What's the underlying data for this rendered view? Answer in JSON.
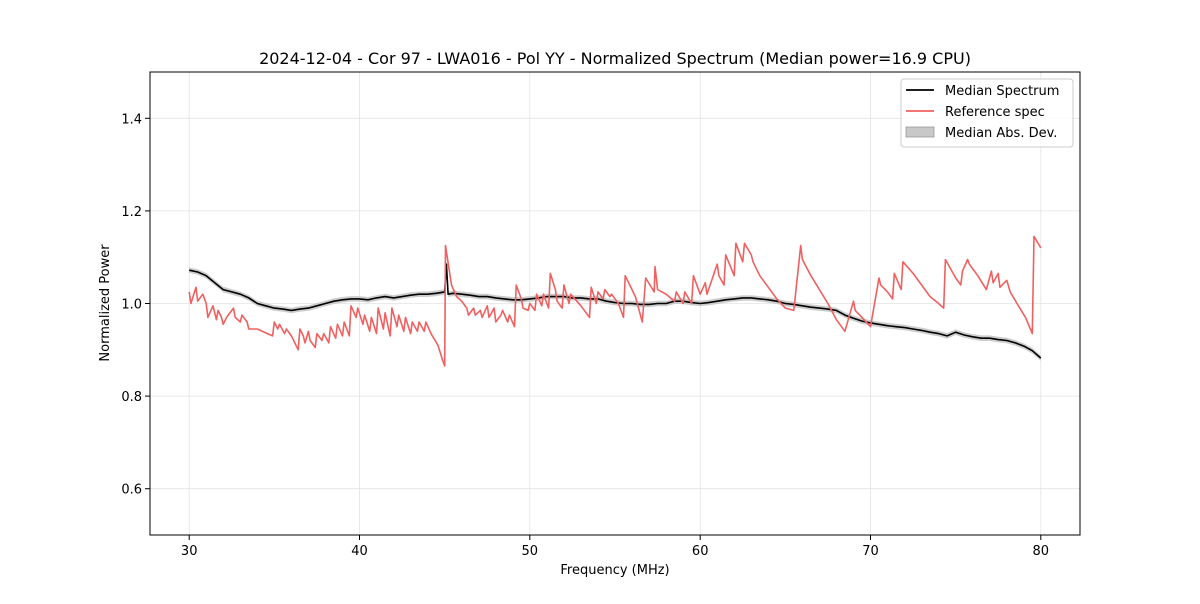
{
  "chart_data": {
    "type": "line",
    "title": "2024-12-04 - Cor 97 - LWA016 - Pol YY - Normalized Spectrum (Median power=16.9 CPU)",
    "xlabel": "Frequency (MHz)",
    "ylabel": "Normalized Power",
    "xlim": [
      27.7,
      82.3
    ],
    "ylim": [
      0.5,
      1.5
    ],
    "xticks": [
      30,
      40,
      50,
      60,
      70,
      80
    ],
    "yticks": [
      0.6,
      0.8,
      1.0,
      1.2,
      1.4
    ],
    "xtick_labels": [
      "30",
      "40",
      "50",
      "60",
      "70",
      "80"
    ],
    "ytick_labels": [
      "0.6",
      "0.8",
      "1.0",
      "1.2",
      "1.4"
    ],
    "grid": true,
    "legend_position": "top-right",
    "legend": [
      {
        "label": "Median Spectrum",
        "kind": "line",
        "color": "#000000"
      },
      {
        "label": "Reference spec",
        "kind": "line",
        "color": "#f06060"
      },
      {
        "label": "Median Abs. Dev.",
        "kind": "patch",
        "color": "#c8c8c8"
      }
    ],
    "series": [
      {
        "name": "Median Spectrum",
        "color": "#000000",
        "mad_band": 0.006,
        "x": [
          30.0,
          30.5,
          31.0,
          31.5,
          32.0,
          32.5,
          33.0,
          33.5,
          34.0,
          34.5,
          35.0,
          35.5,
          36.0,
          36.5,
          37.0,
          37.5,
          38.0,
          38.5,
          39.0,
          39.5,
          40.0,
          40.5,
          41.0,
          41.5,
          42.0,
          42.5,
          43.0,
          43.5,
          44.0,
          44.5,
          45.0,
          45.1,
          45.2,
          45.5,
          46.0,
          46.5,
          47.0,
          47.5,
          48.0,
          48.5,
          49.0,
          49.5,
          50.0,
          50.5,
          51.0,
          51.5,
          52.0,
          52.5,
          53.0,
          53.5,
          54.0,
          54.5,
          55.0,
          55.5,
          56.0,
          56.5,
          57.0,
          57.5,
          58.0,
          58.5,
          59.0,
          59.5,
          60.0,
          60.5,
          61.0,
          61.5,
          62.0,
          62.5,
          63.0,
          63.5,
          64.0,
          64.5,
          65.0,
          65.5,
          66.0,
          66.5,
          67.0,
          67.5,
          68.0,
          68.5,
          69.0,
          69.5,
          70.0,
          70.5,
          71.0,
          71.5,
          72.0,
          72.5,
          73.0,
          73.5,
          74.0,
          74.5,
          75.0,
          75.5,
          76.0,
          76.5,
          77.0,
          77.5,
          78.0,
          78.5,
          79.0,
          79.5,
          80.0
        ],
        "y": [
          1.072,
          1.068,
          1.06,
          1.045,
          1.03,
          1.025,
          1.02,
          1.012,
          1.0,
          0.995,
          0.99,
          0.988,
          0.985,
          0.988,
          0.99,
          0.995,
          1.0,
          1.005,
          1.008,
          1.01,
          1.01,
          1.008,
          1.012,
          1.015,
          1.012,
          1.015,
          1.018,
          1.02,
          1.02,
          1.022,
          1.025,
          1.085,
          1.02,
          1.022,
          1.02,
          1.018,
          1.015,
          1.015,
          1.012,
          1.01,
          1.008,
          1.008,
          1.01,
          1.012,
          1.015,
          1.015,
          1.015,
          1.012,
          1.012,
          1.01,
          1.01,
          1.005,
          1.002,
          1.0,
          1.0,
          0.998,
          0.998,
          1.0,
          1.0,
          1.005,
          1.005,
          1.002,
          1.0,
          1.002,
          1.005,
          1.008,
          1.01,
          1.012,
          1.012,
          1.01,
          1.008,
          1.005,
          1.0,
          0.998,
          0.995,
          0.992,
          0.99,
          0.988,
          0.985,
          0.975,
          0.968,
          0.962,
          0.958,
          0.955,
          0.952,
          0.95,
          0.948,
          0.945,
          0.942,
          0.938,
          0.935,
          0.93,
          0.938,
          0.932,
          0.928,
          0.925,
          0.925,
          0.922,
          0.92,
          0.915,
          0.908,
          0.898,
          0.882
        ]
      },
      {
        "name": "Reference spec",
        "color": "#f06060",
        "x": [
          30.0,
          30.1,
          30.4,
          30.5,
          30.8,
          31.0,
          31.1,
          31.4,
          31.6,
          31.7,
          31.9,
          32.0,
          32.2,
          32.6,
          32.7,
          33.0,
          33.1,
          33.4,
          33.5,
          34.0,
          34.6,
          34.9,
          35.0,
          35.2,
          35.3,
          35.6,
          35.7,
          36.0,
          36.4,
          36.5,
          36.7,
          36.8,
          37.0,
          37.1,
          37.4,
          37.5,
          37.8,
          37.9,
          38.2,
          38.3,
          38.6,
          38.7,
          39.0,
          39.1,
          39.4,
          39.5,
          39.8,
          39.9,
          40.2,
          40.3,
          40.6,
          40.7,
          41.0,
          41.1,
          41.4,
          41.5,
          41.8,
          41.9,
          42.2,
          42.3,
          42.6,
          42.7,
          43.0,
          43.1,
          43.4,
          43.5,
          43.8,
          43.9,
          44.2,
          44.6,
          44.9,
          45.0,
          45.05,
          45.4,
          45.7,
          46.0,
          46.3,
          46.4,
          46.7,
          46.8,
          47.1,
          47.2,
          47.5,
          47.6,
          47.9,
          48.0,
          48.3,
          48.4,
          48.7,
          48.8,
          49.1,
          49.2,
          49.5,
          49.6,
          49.9,
          50.0,
          50.3,
          50.4,
          50.7,
          50.8,
          51.1,
          51.2,
          51.5,
          51.6,
          51.9,
          52.0,
          52.3,
          52.4,
          53.0,
          53.5,
          53.6,
          53.9,
          54.0,
          54.3,
          54.4,
          54.7,
          54.8,
          55.1,
          55.2,
          55.5,
          55.6,
          56.2,
          56.6,
          56.8,
          57.3,
          57.35,
          57.5,
          58.0,
          58.5,
          58.6,
          59.0,
          59.1,
          59.5,
          59.6,
          60.0,
          60.3,
          60.4,
          61.0,
          61.1,
          61.4,
          61.5,
          62.0,
          62.1,
          62.5,
          62.6,
          63.0,
          63.1,
          63.5,
          64.0,
          64.5,
          65.0,
          65.5,
          65.9,
          66.0,
          66.5,
          67.0,
          67.5,
          68.0,
          68.5,
          69.0,
          69.1,
          69.5,
          70.0,
          70.5,
          70.6,
          71.0,
          71.3,
          71.4,
          71.8,
          71.9,
          72.5,
          73.0,
          73.5,
          74.0,
          74.3,
          74.4,
          75.0,
          75.3,
          75.4,
          75.7,
          75.8,
          76.3,
          76.8,
          77.1,
          77.2,
          77.5,
          77.6,
          78.0,
          78.2,
          78.6,
          79.1,
          79.5,
          79.6,
          80.0
        ],
        "y": [
          1.025,
          1.0,
          1.035,
          1.005,
          1.02,
          1.0,
          0.97,
          0.995,
          0.965,
          0.985,
          0.97,
          0.955,
          0.97,
          0.99,
          0.97,
          0.96,
          0.975,
          0.96,
          0.945,
          0.945,
          0.935,
          0.93,
          0.96,
          0.945,
          0.955,
          0.935,
          0.945,
          0.93,
          0.9,
          0.945,
          0.93,
          0.915,
          0.94,
          0.92,
          0.905,
          0.935,
          0.92,
          0.935,
          0.915,
          0.95,
          0.925,
          0.955,
          0.93,
          0.96,
          0.93,
          0.995,
          0.97,
          0.99,
          0.955,
          0.975,
          0.94,
          0.97,
          0.935,
          0.99,
          0.945,
          0.98,
          0.93,
          0.99,
          0.95,
          0.975,
          0.94,
          0.97,
          0.935,
          0.96,
          0.94,
          0.96,
          0.94,
          0.96,
          0.935,
          0.91,
          0.875,
          0.865,
          1.125,
          1.04,
          1.015,
          1.005,
          0.99,
          0.975,
          0.99,
          0.975,
          0.985,
          0.97,
          0.995,
          0.97,
          0.99,
          0.96,
          0.975,
          0.985,
          0.96,
          0.975,
          0.95,
          1.04,
          1.01,
          0.99,
          0.985,
          1.0,
          0.985,
          1.02,
          0.995,
          1.02,
          0.99,
          1.065,
          1.03,
          1.005,
          0.99,
          1.04,
          1.0,
          1.02,
          0.995,
          0.97,
          1.035,
          1.0,
          1.025,
          1.01,
          1.03,
          1.015,
          1.02,
          1.005,
          1.0,
          0.97,
          1.06,
          1.015,
          0.96,
          1.055,
          1.025,
          1.08,
          1.03,
          1.02,
          1.005,
          1.025,
          1.0,
          1.025,
          1.0,
          1.06,
          1.02,
          1.045,
          1.02,
          1.085,
          1.06,
          1.04,
          1.105,
          1.06,
          1.13,
          1.09,
          1.13,
          1.105,
          1.09,
          1.06,
          1.035,
          1.01,
          0.99,
          0.985,
          1.125,
          1.095,
          1.06,
          1.03,
          1.0,
          0.965,
          0.94,
          1.005,
          0.985,
          0.97,
          0.95,
          1.055,
          1.04,
          1.025,
          1.01,
          1.065,
          1.03,
          1.09,
          1.065,
          1.04,
          1.015,
          1.0,
          0.99,
          1.095,
          1.055,
          1.04,
          1.07,
          1.095,
          1.085,
          1.06,
          1.03,
          1.07,
          1.045,
          1.065,
          1.035,
          1.05,
          1.025,
          1.0,
          0.97,
          0.935,
          1.145,
          1.12
        ]
      }
    ]
  }
}
